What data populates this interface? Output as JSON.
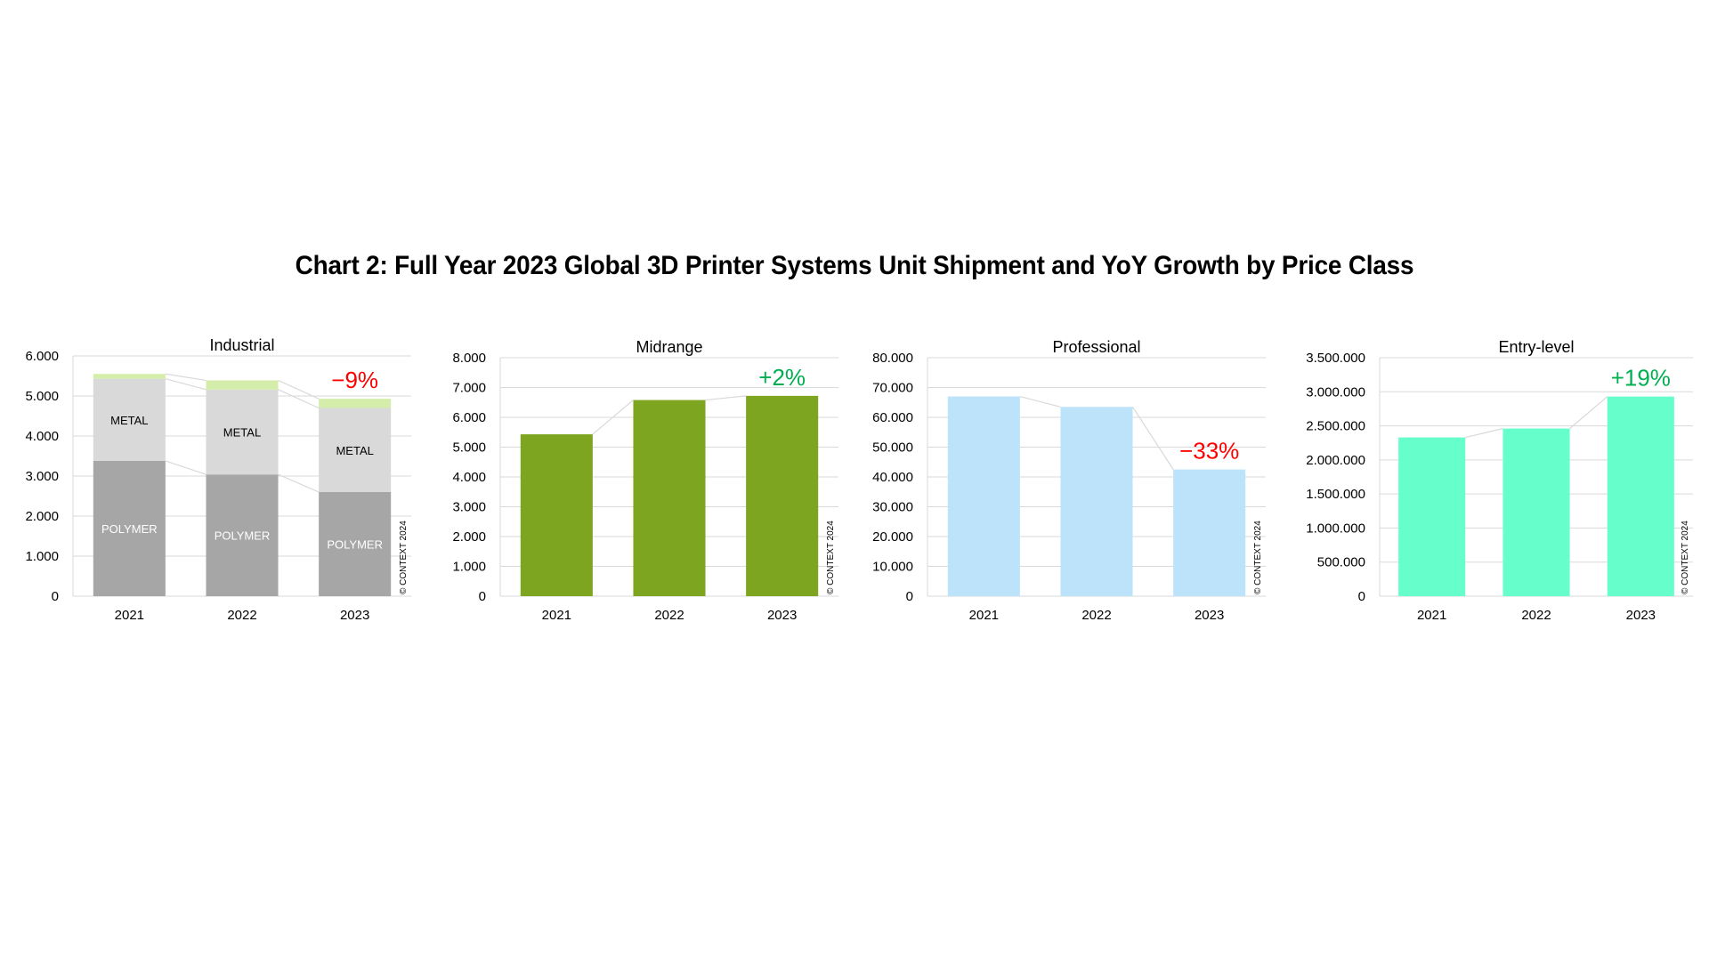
{
  "title": "Chart 2: Full Year 2023 Global 3D Printer Systems Unit Shipment and YoY Growth by Price Class",
  "copyright": "© CONTEXT 2024",
  "chart_data": [
    {
      "type": "bar",
      "stacked": true,
      "title": "Industrial",
      "categories": [
        "2021",
        "2022",
        "2023"
      ],
      "ylim": [
        0,
        6000
      ],
      "yticks": [
        0,
        1000,
        2000,
        3000,
        4000,
        5000,
        6000
      ],
      "ytick_labels": [
        "0",
        "1.000",
        "2.000",
        "3.000",
        "4.000",
        "5.000",
        "6.000"
      ],
      "series": [
        {
          "name": "POLYMER",
          "values": [
            3380,
            3040,
            2600
          ],
          "color": "#a6a6a6",
          "label_color": "#ffffff"
        },
        {
          "name": "METAL",
          "values": [
            2050,
            2120,
            2100
          ],
          "color": "#d9d9d9",
          "label_color": "#000000"
        },
        {
          "values": [
            120,
            230,
            230
          ],
          "color": "#d4edaa",
          "label_color": "#000000"
        }
      ],
      "growth": "−9%",
      "growth_color": "#ff0000",
      "grid": true
    },
    {
      "type": "bar",
      "title": "Midrange",
      "categories": [
        "2021",
        "2022",
        "2023"
      ],
      "values": [
        5430,
        6580,
        6720
      ],
      "ylim": [
        0,
        8000
      ],
      "yticks": [
        0,
        1000,
        2000,
        3000,
        4000,
        5000,
        6000,
        7000,
        8000
      ],
      "ytick_labels": [
        "0",
        "1.000",
        "2.000",
        "3.000",
        "4.000",
        "5.000",
        "6.000",
        "7.000",
        "8.000"
      ],
      "color": "#7ea51f",
      "growth": "+2%",
      "growth_color": "#00b050",
      "grid": true
    },
    {
      "type": "bar",
      "title": "Professional",
      "categories": [
        "2021",
        "2022",
        "2023"
      ],
      "values": [
        67000,
        63500,
        42500
      ],
      "ylim": [
        0,
        80000
      ],
      "yticks": [
        0,
        10000,
        20000,
        30000,
        40000,
        50000,
        60000,
        70000,
        80000
      ],
      "ytick_labels": [
        "0",
        "10.000",
        "20.000",
        "30.000",
        "40.000",
        "50.000",
        "60.000",
        "70.000",
        "80.000"
      ],
      "color": "#bde3fb",
      "growth": "−33%",
      "growth_color": "#ff0000",
      "grid": true
    },
    {
      "type": "bar",
      "title": "Entry-level",
      "categories": [
        "2021",
        "2022",
        "2023"
      ],
      "values": [
        2330000,
        2460000,
        2930000
      ],
      "ylim": [
        0,
        3500000
      ],
      "yticks": [
        0,
        500000,
        1000000,
        1500000,
        2000000,
        2500000,
        3000000,
        3500000
      ],
      "ytick_labels": [
        "0",
        "500.000",
        "1.000.000",
        "1.500.000",
        "2.000.000",
        "2.500.000",
        "3.000.000",
        "3.500.000"
      ],
      "color": "#66ffcc",
      "growth": "+19%",
      "growth_color": "#00b050",
      "grid": true
    }
  ]
}
